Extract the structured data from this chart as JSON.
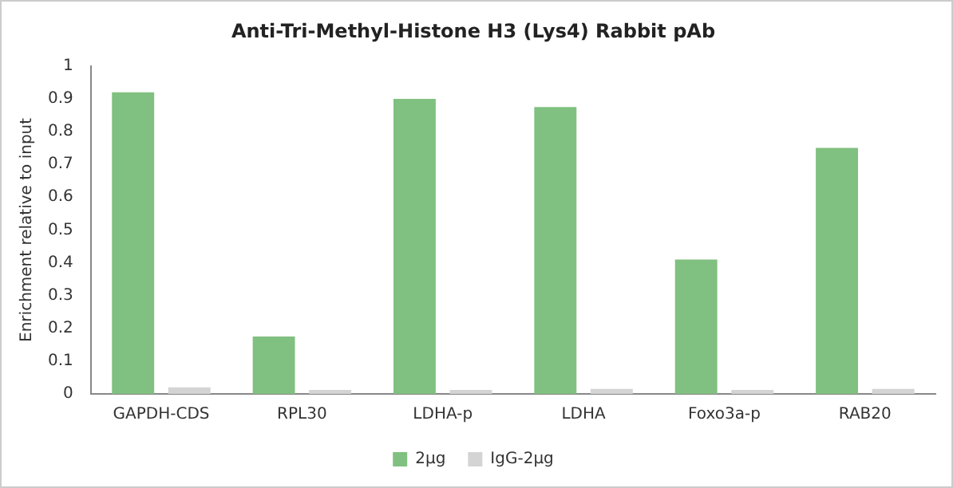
{
  "chart_data": {
    "type": "bar",
    "title": "Anti-Tri-Methyl-Histone H3 (Lys4) Rabbit pAb",
    "ylabel": "Enrichment relative to input",
    "categories": [
      "GAPDH-CDS",
      "RPL30",
      "LDHA-p",
      "LDHA",
      "Foxo3a-p",
      "RAB20"
    ],
    "series": [
      {
        "name": "2μg",
        "color": "#80c080",
        "values": [
          0.92,
          0.175,
          0.9,
          0.875,
          0.41,
          0.75
        ]
      },
      {
        "name": "IgG-2μg",
        "color": "#d4d4d4",
        "values": [
          0.02,
          0.012,
          0.012,
          0.015,
          0.012,
          0.015
        ]
      }
    ],
    "ylim": [
      0,
      1
    ],
    "yticks": [
      0,
      0.1,
      0.2,
      0.3,
      0.4,
      0.5,
      0.6,
      0.7,
      0.8,
      0.9,
      1
    ],
    "grid": false,
    "legend": "bottom"
  }
}
